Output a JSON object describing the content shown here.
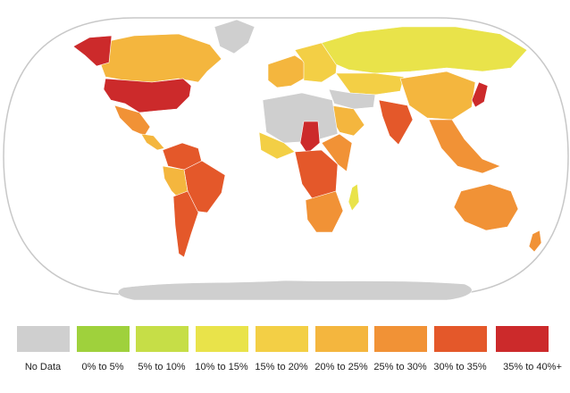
{
  "legend": {
    "items": [
      {
        "label": "No Data",
        "color": "#cfcfcf"
      },
      {
        "label": "0% to 5%",
        "color": "#9fd13c"
      },
      {
        "label": "5% to 10%",
        "color": "#c6de47"
      },
      {
        "label": "10% to 15%",
        "color": "#e9e34a"
      },
      {
        "label": "15% to 20%",
        "color": "#f3cf45"
      },
      {
        "label": "20% to 25%",
        "color": "#f4b63e"
      },
      {
        "label": "25% to 30%",
        "color": "#f19236"
      },
      {
        "label": "30% to 35%",
        "color": "#e4582a"
      },
      {
        "label": "35% to 40%+",
        "color": "#cc2a2b"
      }
    ]
  },
  "map": {
    "ocean_color": "#ffffff",
    "outline_color": "#c8c8c8",
    "region_colors": {
      "north_america_canada": "#f4b63e",
      "alaska": "#cc2a2b",
      "usa": "#cc2a2b",
      "mexico": "#f19236",
      "central_america": "#f4b63e",
      "greenland": "#cfcfcf",
      "south_america_north": "#e4582a",
      "south_america_east": "#e4582a",
      "south_america_west": "#f4b63e",
      "argentina": "#e4582a",
      "europe_west": "#f4b63e",
      "europe_east": "#f3cf45",
      "russia": "#e9e34a",
      "central_asia": "#f3cf45",
      "middle_east": "#cfcfcf",
      "arabia": "#f4b63e",
      "india": "#e4582a",
      "china": "#f4b63e",
      "japan": "#cc2a2b",
      "se_asia": "#f19236",
      "north_africa": "#cfcfcf",
      "west_africa": "#f3cf45",
      "chad": "#cc2a2b",
      "central_africa": "#e4582a",
      "east_africa": "#f19236",
      "southern_africa": "#f19236",
      "madagascar": "#e9e34a",
      "australia": "#f19236",
      "new_zealand": "#f19236",
      "antarctica": "#cfcfcf"
    }
  }
}
